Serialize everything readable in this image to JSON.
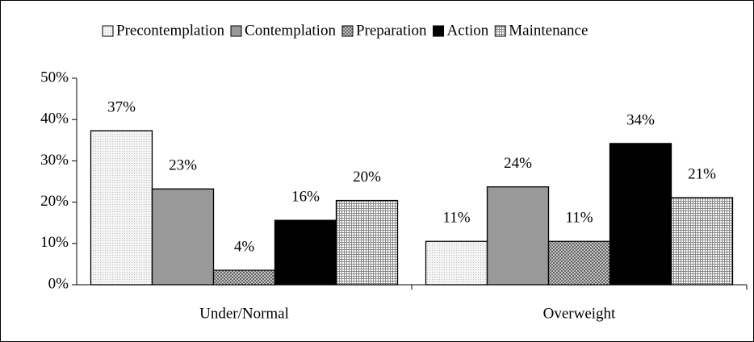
{
  "chart_data": {
    "type": "bar",
    "categories": [
      "Under/Normal",
      "Overweight"
    ],
    "series": [
      {
        "name": "Precontemplation",
        "color": "#f4f4f4",
        "values": [
          37.3,
          10.5
        ],
        "value_labels": [
          "37%",
          "11%"
        ]
      },
      {
        "name": "Contemplation",
        "color": "#999999",
        "values": [
          23.2,
          23.7
        ],
        "value_labels": [
          "23%",
          "24%"
        ]
      },
      {
        "name": "Preparation",
        "color": "#666666",
        "values": [
          3.5,
          10.5
        ],
        "value_labels": [
          "4%",
          "11%"
        ]
      },
      {
        "name": "Action",
        "color": "#000000",
        "values": [
          15.6,
          34.2
        ],
        "value_labels": [
          "16%",
          "34%"
        ]
      },
      {
        "name": "Maintenance",
        "color": "#e0e0e0",
        "values": [
          20.4,
          21.1
        ],
        "value_labels": [
          "20%",
          "21%"
        ]
      }
    ],
    "ylim": [
      0,
      50
    ],
    "yticks": [
      {
        "value": 0,
        "label": "0%"
      },
      {
        "value": 10,
        "label": "10%"
      },
      {
        "value": 20,
        "label": "20%"
      },
      {
        "value": 30,
        "label": "30%"
      },
      {
        "value": 40,
        "label": "40%"
      },
      {
        "value": 50,
        "label": "50%"
      }
    ],
    "legend": "top"
  }
}
